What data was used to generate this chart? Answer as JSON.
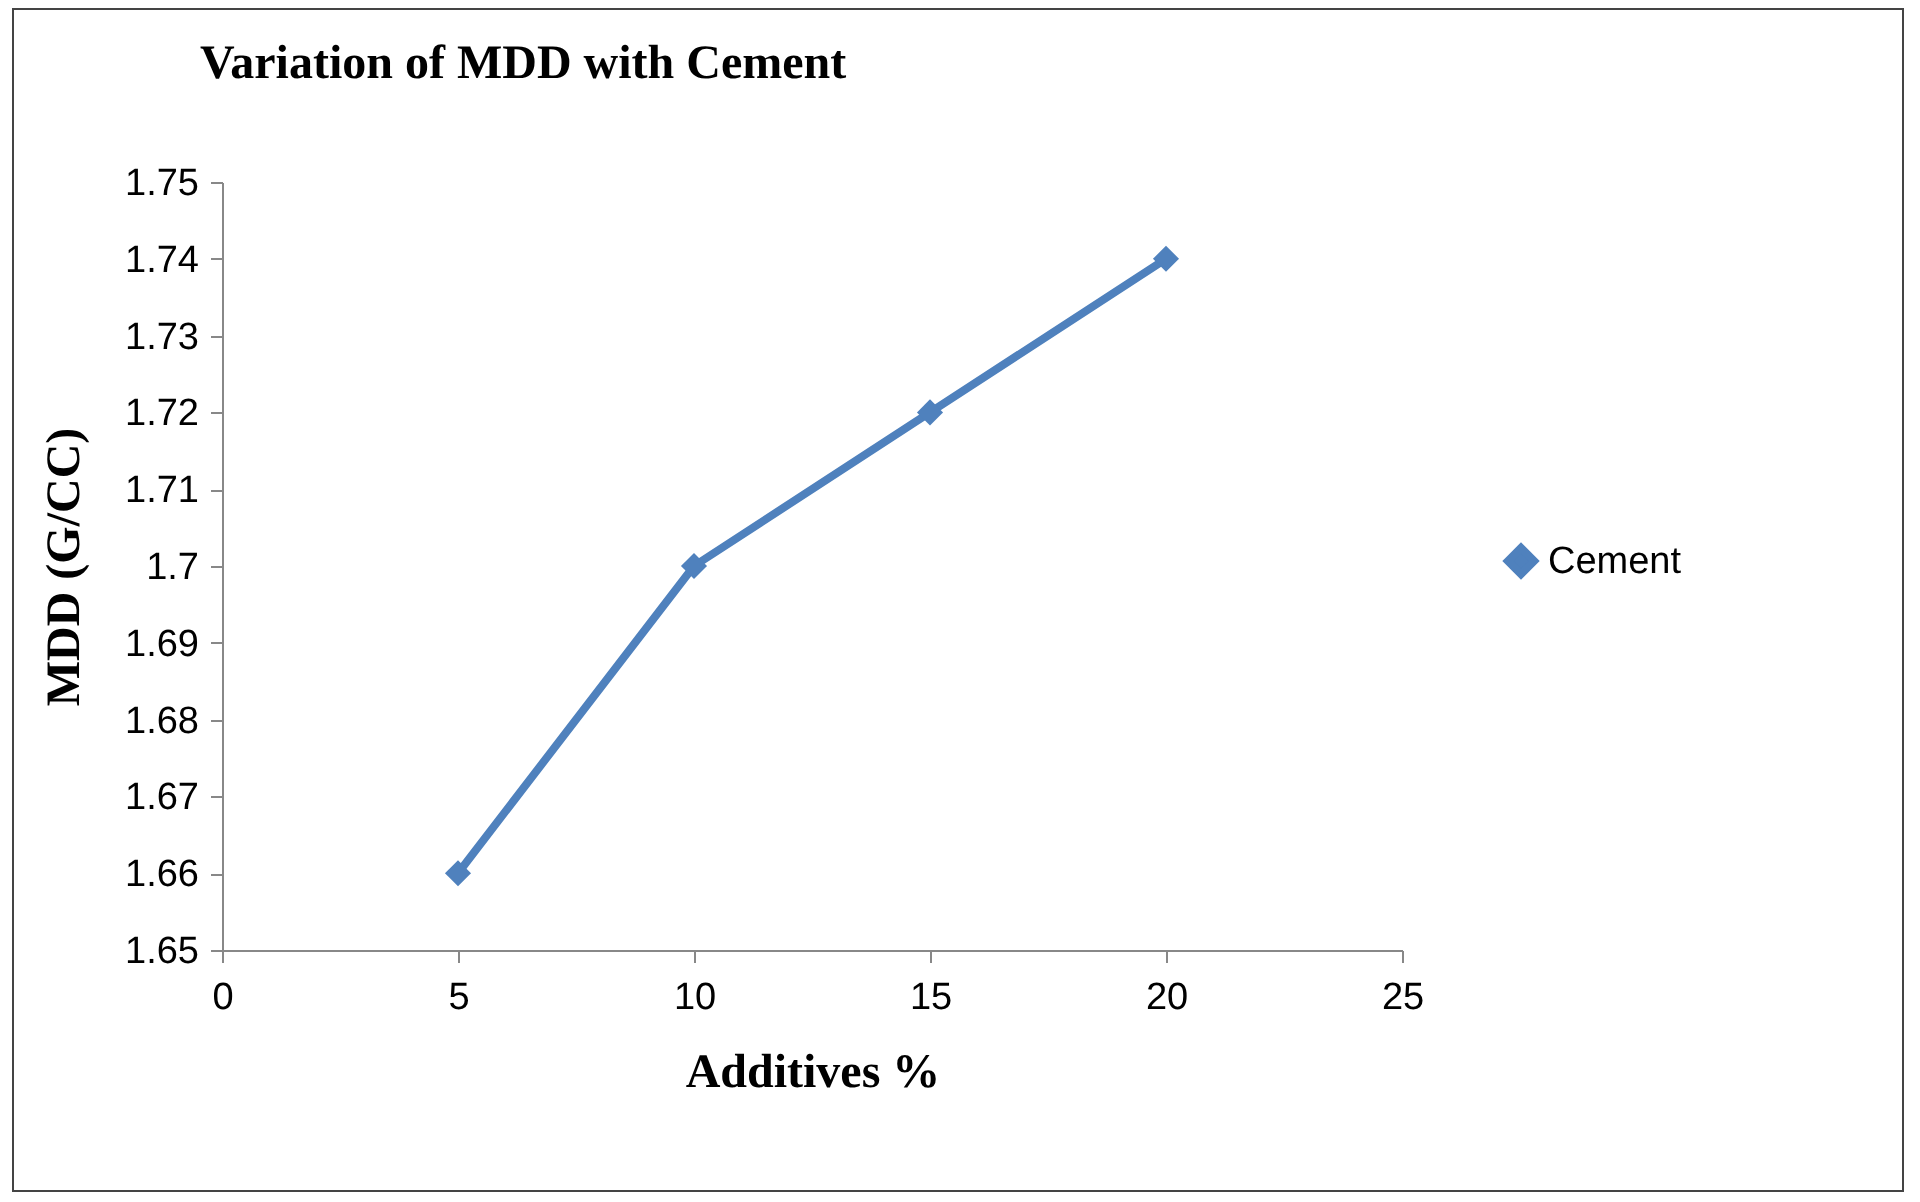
{
  "chart_data": {
    "type": "line",
    "title": "Variation of MDD with Cement",
    "xlabel": "Additives %",
    "ylabel": "MDD (G/CC)",
    "x": [
      5,
      10,
      15,
      20
    ],
    "series": [
      {
        "name": "Cement",
        "color": "#4f81bd",
        "values": [
          1.66,
          1.7,
          1.72,
          1.74
        ]
      }
    ],
    "xlim": [
      0,
      25
    ],
    "xticks": [
      0,
      5,
      10,
      15,
      20,
      25
    ],
    "ylim": [
      1.65,
      1.75
    ],
    "yticks": [
      1.65,
      1.66,
      1.67,
      1.68,
      1.69,
      1.7,
      1.71,
      1.72,
      1.73,
      1.74,
      1.75
    ],
    "grid": false,
    "legend": "right",
    "marker": "diamond",
    "line_style": "solid"
  }
}
